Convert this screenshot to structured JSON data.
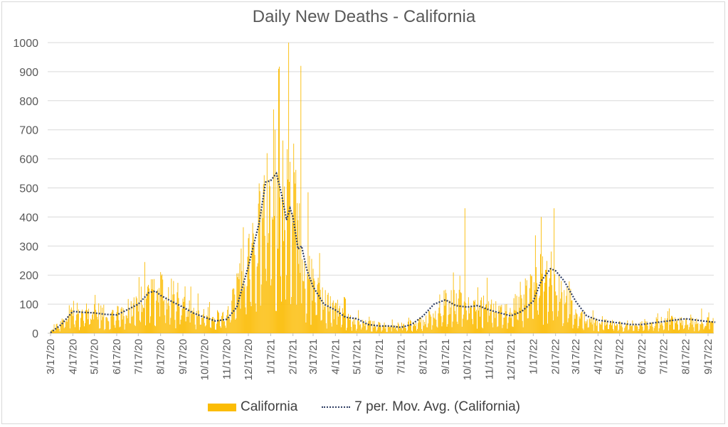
{
  "chart_data": {
    "type": "bar",
    "title": "Daily New Deaths - California",
    "xlabel": "",
    "ylabel": "",
    "ylim": [
      0,
      1000
    ],
    "yticks": [
      "0",
      "100",
      "200",
      "300",
      "400",
      "500",
      "600",
      "700",
      "800",
      "900",
      "1000"
    ],
    "xticks": [
      "3/17/20",
      "4/17/20",
      "5/17/20",
      "6/17/20",
      "7/17/20",
      "8/17/20",
      "9/17/20",
      "10/17/20",
      "11/17/20",
      "12/17/20",
      "1/17/21",
      "2/17/21",
      "3/17/21",
      "4/17/21",
      "5/17/21",
      "6/17/21",
      "7/17/21",
      "8/17/21",
      "9/17/21",
      "10/17/21",
      "11/17/21",
      "12/17/21",
      "1/17/22",
      "2/17/22",
      "3/17/22",
      "4/17/22",
      "5/17/22",
      "6/17/22",
      "7/17/22",
      "8/17/22",
      "9/17/22"
    ],
    "series": [
      {
        "name": "California",
        "kind": "bar",
        "color": "#FBBC05",
        "monthly_typical_values": [
          5,
          70,
          70,
          65,
          105,
          140,
          95,
          55,
          55,
          230,
          500,
          410,
          150,
          70,
          45,
          25,
          25,
          40,
          100,
          105,
          85,
          70,
          190,
          170,
          60,
          35,
          30,
          30,
          40,
          45,
          40
        ],
        "peaks": [
          {
            "date": "1/28/21",
            "value": 910
          },
          {
            "date": "2/11/21",
            "value": 1000
          },
          {
            "date": "2/28/21",
            "value": 920
          },
          {
            "date": "1/21/21",
            "value": 770
          },
          {
            "date": "3/10/21",
            "value": 485
          },
          {
            "date": "10/14/21",
            "value": 430
          },
          {
            "date": "2/15/22",
            "value": 430
          },
          {
            "date": "1/28/22",
            "value": 400
          },
          {
            "date": "7/26/20",
            "value": 245
          }
        ]
      },
      {
        "name": "7 per. Mov. Avg. (California)",
        "kind": "line",
        "color": "#2F3E63",
        "style": "dotted",
        "points": [
          [
            "3/17/20",
            2
          ],
          [
            "4/1/20",
            30
          ],
          [
            "4/17/20",
            75
          ],
          [
            "5/1/20",
            72
          ],
          [
            "5/17/20",
            70
          ],
          [
            "6/1/20",
            65
          ],
          [
            "6/17/20",
            63
          ],
          [
            "7/1/20",
            80
          ],
          [
            "7/17/20",
            100
          ],
          [
            "8/1/20",
            140
          ],
          [
            "8/10/20",
            145
          ],
          [
            "8/17/20",
            130
          ],
          [
            "9/1/20",
            110
          ],
          [
            "9/17/20",
            90
          ],
          [
            "10/1/20",
            70
          ],
          [
            "10/17/20",
            55
          ],
          [
            "11/1/20",
            42
          ],
          [
            "11/17/20",
            48
          ],
          [
            "12/1/20",
            90
          ],
          [
            "12/10/20",
            170
          ],
          [
            "12/17/20",
            230
          ],
          [
            "1/1/21",
            380
          ],
          [
            "1/10/21",
            520
          ],
          [
            "1/17/21",
            525
          ],
          [
            "1/25/21",
            550
          ],
          [
            "2/1/21",
            480
          ],
          [
            "2/8/21",
            390
          ],
          [
            "2/13/21",
            430
          ],
          [
            "2/17/21",
            400
          ],
          [
            "2/24/21",
            290
          ],
          [
            "3/1/21",
            300
          ],
          [
            "3/8/21",
            220
          ],
          [
            "3/17/21",
            160
          ],
          [
            "4/1/21",
            100
          ],
          [
            "4/17/21",
            80
          ],
          [
            "5/1/21",
            55
          ],
          [
            "5/17/21",
            50
          ],
          [
            "6/1/21",
            30
          ],
          [
            "6/17/21",
            25
          ],
          [
            "7/1/21",
            25
          ],
          [
            "7/17/21",
            20
          ],
          [
            "8/1/21",
            30
          ],
          [
            "8/17/21",
            60
          ],
          [
            "9/1/21",
            100
          ],
          [
            "9/17/21",
            115
          ],
          [
            "10/1/21",
            95
          ],
          [
            "10/17/21",
            90
          ],
          [
            "11/1/21",
            95
          ],
          [
            "11/17/21",
            80
          ],
          [
            "12/1/21",
            70
          ],
          [
            "12/17/21",
            60
          ],
          [
            "1/1/22",
            75
          ],
          [
            "1/17/22",
            110
          ],
          [
            "1/28/22",
            180
          ],
          [
            "2/10/22",
            222
          ],
          [
            "2/17/22",
            215
          ],
          [
            "3/1/22",
            180
          ],
          [
            "3/17/22",
            110
          ],
          [
            "4/1/22",
            60
          ],
          [
            "4/17/22",
            45
          ],
          [
            "5/1/22",
            40
          ],
          [
            "5/17/22",
            35
          ],
          [
            "6/1/22",
            30
          ],
          [
            "6/17/22",
            30
          ],
          [
            "7/1/22",
            35
          ],
          [
            "7/17/22",
            40
          ],
          [
            "8/1/22",
            45
          ],
          [
            "8/17/22",
            50
          ],
          [
            "9/1/22",
            45
          ],
          [
            "9/17/22",
            40
          ],
          [
            "9/27/22",
            38
          ]
        ]
      }
    ],
    "legend": "bottom"
  },
  "legend": {
    "bar_label": "California",
    "line_label": "7 per. Mov. Avg. (California)"
  }
}
